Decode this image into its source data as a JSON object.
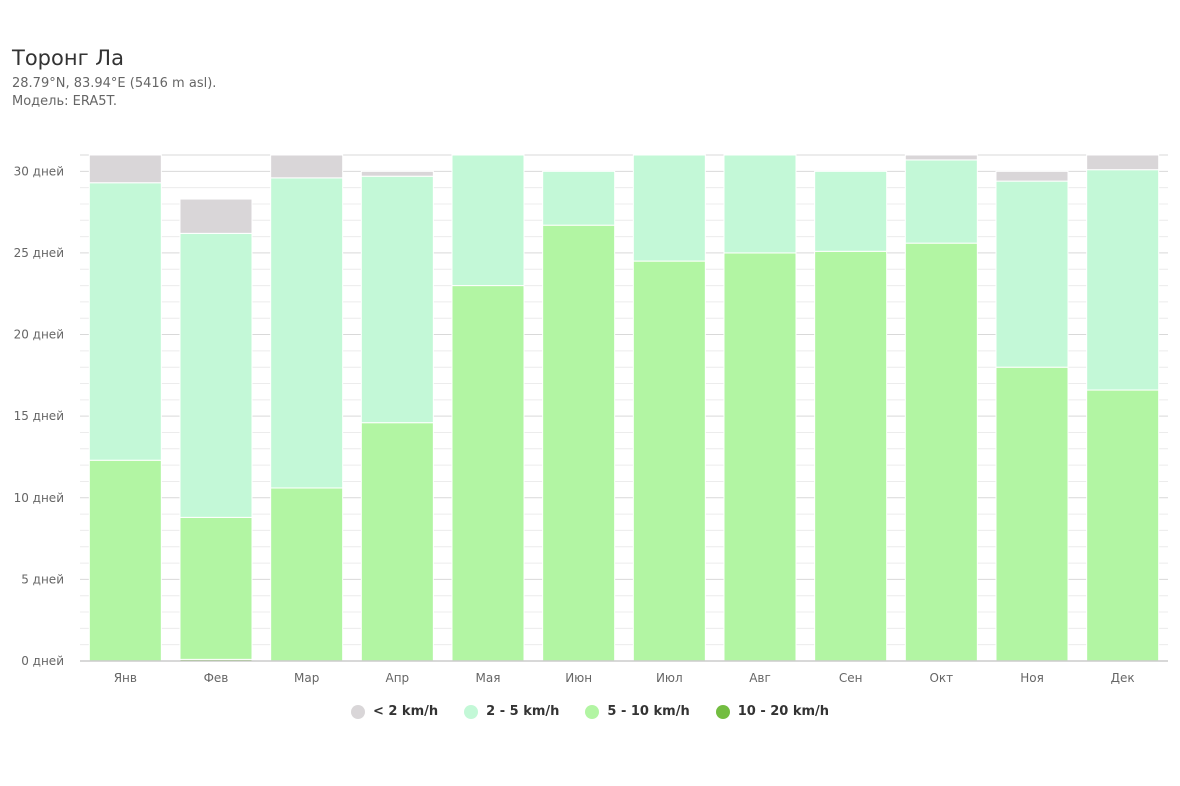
{
  "header": {
    "title": "Торонг Ла",
    "subtitle_coords": "28.79°N, 83.94°E (5416 m asl).",
    "subtitle_model": "Модель: ERA5T."
  },
  "chart_data": {
    "type": "bar",
    "stacked": true,
    "categories": [
      "Янв",
      "Фев",
      "Мар",
      "Апр",
      "Мая",
      "Июн",
      "Июл",
      "Авг",
      "Сен",
      "Окт",
      "Ноя",
      "Дек"
    ],
    "ylim": [
      0,
      31
    ],
    "yticks": [
      0,
      5,
      10,
      15,
      20,
      25,
      30
    ],
    "ytick_labels": [
      "0 дней",
      "5 дней",
      "10 дней",
      "15 дней",
      "20 дней",
      "25 дней",
      "30 дней"
    ],
    "grid": true,
    "legend_position": "bottom",
    "series": [
      {
        "name": "10 - 20 km/h",
        "color": "#73bd41",
        "values": [
          0,
          0.1,
          0,
          0,
          0,
          0,
          0,
          0,
          0,
          0,
          0,
          0
        ]
      },
      {
        "name": "5 - 10 km/h",
        "color": "#b2f5a3",
        "values": [
          12.3,
          8.7,
          10.6,
          14.6,
          23.0,
          26.7,
          24.5,
          25.0,
          25.1,
          25.6,
          18.0,
          16.6
        ]
      },
      {
        "name": "2 - 5 km/h",
        "color": "#c3f8d7",
        "values": [
          17.0,
          17.4,
          19.0,
          15.1,
          8.0,
          3.3,
          6.5,
          6.0,
          4.9,
          5.1,
          11.4,
          13.5
        ]
      },
      {
        "name": "< 2 km/h",
        "color": "#d9d6d8",
        "values": [
          1.7,
          2.1,
          1.4,
          0.3,
          0,
          0,
          0,
          0,
          0,
          0.3,
          0.6,
          0.9
        ]
      }
    ]
  },
  "legend": [
    {
      "label": "< 2 km/h",
      "color": "#d9d6d8"
    },
    {
      "label": "2 - 5 km/h",
      "color": "#c3f8d7"
    },
    {
      "label": "5 - 10 km/h",
      "color": "#b2f5a3"
    },
    {
      "label": "10 - 20 km/h",
      "color": "#73bd41"
    }
  ]
}
